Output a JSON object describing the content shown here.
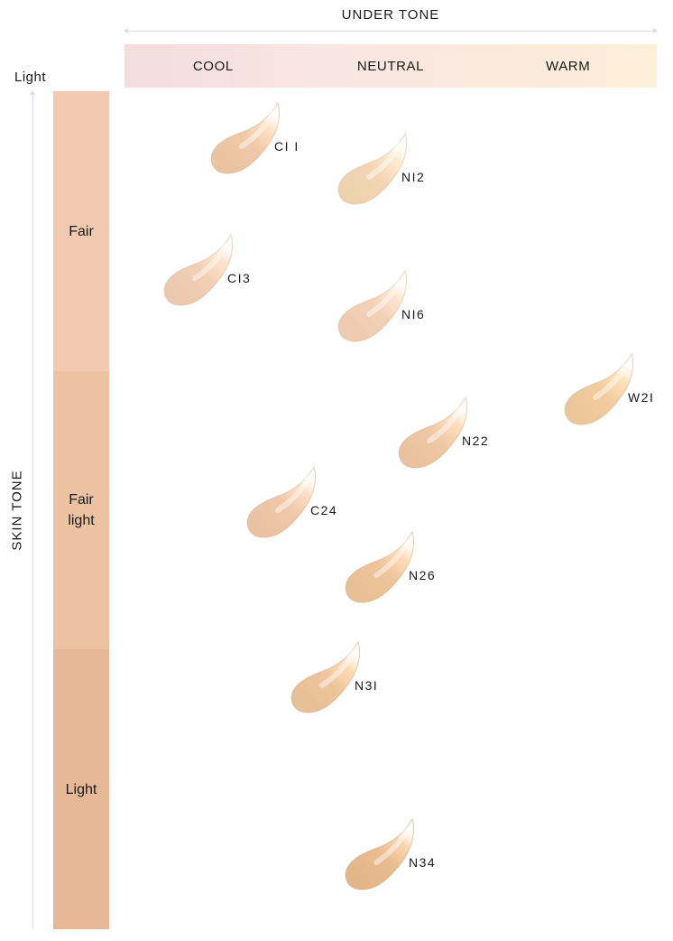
{
  "under_tone": {
    "title": "UNDER TONE",
    "columns": [
      "COOL",
      "NEUTRAL",
      "WARM"
    ]
  },
  "skin_tone": {
    "title": "SKIN TONE",
    "light_label": "Light",
    "bands": [
      {
        "label": "Fair",
        "color": "#f1cab0"
      },
      {
        "label": "Fair\nlight",
        "color": "#edc2a3"
      },
      {
        "label": "Light",
        "color": "#e7b898"
      }
    ]
  },
  "shades": [
    {
      "code": "C11",
      "label": "CI I",
      "undertone": "COOL",
      "band": "Fair",
      "color": "#efc9a8"
    },
    {
      "code": "N12",
      "label": "NI2",
      "undertone": "NEUTRAL",
      "band": "Fair",
      "color": "#f3d7b5"
    },
    {
      "code": "C13",
      "label": "CI3",
      "undertone": "COOL",
      "band": "Fair",
      "color": "#f1cfb4"
    },
    {
      "code": "N16",
      "label": "NI6",
      "undertone": "NEUTRAL",
      "band": "Fair",
      "color": "#f3d1b6"
    },
    {
      "code": "W21",
      "label": "W2I",
      "undertone": "WARM",
      "band": "Fair light",
      "color": "#f1cc9f"
    },
    {
      "code": "N22",
      "label": "N22",
      "undertone": "NEUTRAL",
      "band": "Fair light",
      "color": "#efc9a5"
    },
    {
      "code": "C24",
      "label": "C24",
      "undertone": "COOL",
      "band": "Fair light",
      "color": "#f0c7a9"
    },
    {
      "code": "N26",
      "label": "N26",
      "undertone": "NEUTRAL",
      "band": "Fair light",
      "color": "#eec49a"
    },
    {
      "code": "N31",
      "label": "N3I",
      "undertone": "NEUTRAL",
      "band": "Light",
      "color": "#edc59c"
    },
    {
      "code": "N34",
      "label": "N34",
      "undertone": "NEUTRAL",
      "band": "Light",
      "color": "#e8bc8e"
    }
  ]
}
